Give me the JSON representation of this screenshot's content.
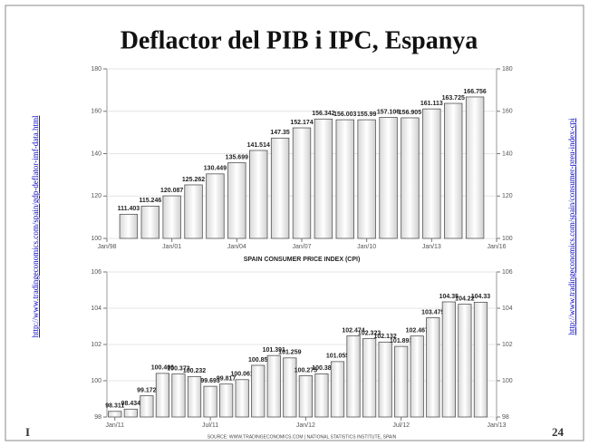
{
  "slide_title": "Deflactor del PIB i IPC, Espanya",
  "left_link": "http://www.tradingeconomics.com/spain/gdp-deflator-imf-data.html",
  "right_link": "http://www.tradingeconomics.com/spain/consumer-preu-index-cpi",
  "footer_left": "I",
  "page_number": "24",
  "chart_data": [
    {
      "type": "bar",
      "x": [
        1999,
        2000,
        2001,
        2002,
        2003,
        2004,
        2005,
        2006,
        2007,
        2008,
        2009,
        2010,
        2011,
        2012,
        2013,
        2014,
        2015
      ],
      "values": [
        111.403,
        115.246,
        120.087,
        125.262,
        130.449,
        135.699,
        141.514,
        147.35,
        152.174,
        156.342,
        156.003,
        155.99,
        157.106,
        156.905,
        161.113,
        163.725,
        166.756
      ],
      "xlim": [
        1998,
        2016
      ],
      "xticks": [
        {
          "value": 1998,
          "label": "Jan/98"
        },
        {
          "value": 2001,
          "label": "Jan/01"
        },
        {
          "value": 2004,
          "label": "Jan/04"
        },
        {
          "value": 2007,
          "label": "Jan/07"
        },
        {
          "value": 2010,
          "label": "Jan/10"
        },
        {
          "value": 2013,
          "label": "Jan/13"
        },
        {
          "value": 2016,
          "label": "Jan/16"
        }
      ],
      "ylim": [
        100,
        180
      ],
      "yticks": [
        100,
        120,
        140,
        160,
        180
      ],
      "grid": true
    },
    {
      "type": "bar",
      "title": "SPAIN CONSUMER PRICE INDEX (CPI)",
      "source": "SOURCE: WWW.TRADINGECONOMICS.COM | NATIONAL STATISTICS INSTITUTE, SPAIN",
      "x": [
        0,
        1,
        2,
        3,
        4,
        5,
        6,
        7,
        8,
        9,
        10,
        11,
        12,
        13,
        14,
        15,
        16,
        17,
        18,
        19,
        20,
        21,
        22,
        23
      ],
      "values": [
        98.311,
        98.434,
        99.172,
        100.406,
        100.373,
        100.232,
        99.693,
        99.817,
        100.061,
        100.85,
        101.391,
        101.259,
        100.275,
        100.38,
        101.055,
        102.474,
        102.323,
        102.132,
        101.893,
        102.467,
        103.475,
        104.35,
        104.22,
        104.33
      ],
      "xlim": [
        -0.5,
        24
      ],
      "xticks": [
        {
          "value": 0,
          "label": "Jan/11"
        },
        {
          "value": 6,
          "label": "Jul/11"
        },
        {
          "value": 12,
          "label": "Jan/12"
        },
        {
          "value": 18,
          "label": "Jul/12"
        },
        {
          "value": 24,
          "label": "Jan/13"
        }
      ],
      "ylim": [
        98,
        106
      ],
      "yticks": [
        98,
        100,
        102,
        104,
        106
      ],
      "grid": true
    }
  ]
}
